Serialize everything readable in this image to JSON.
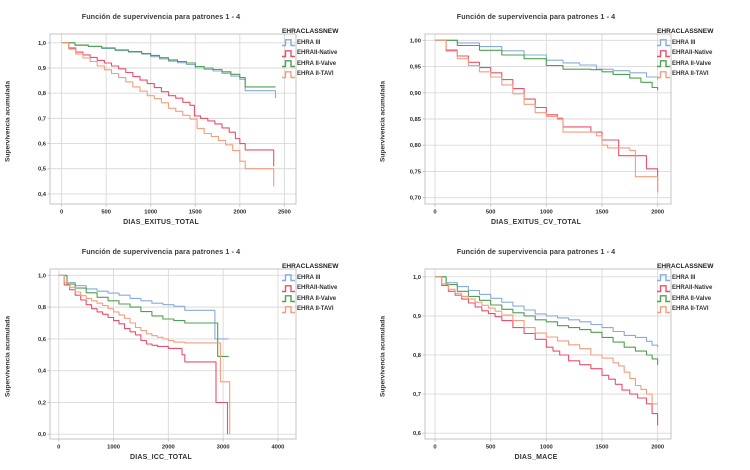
{
  "legend_title": "EHRACLASSNEW",
  "colors": {
    "grid": "#d9d9d9",
    "frame": "#c4c4c4",
    "text": "#2b2b2b",
    "title": "#3b3b3b"
  },
  "series_colors": {
    "ehra_iii": "#88acda",
    "ehraii_native": "#e9506e",
    "ehra_ii_valve": "#4fa14f",
    "ehra_ii_tavi": "#f59e7d"
  },
  "chart_data": [
    {
      "type": "line",
      "step": true,
      "title": "Función de supervivencia para patrones 1 - 4",
      "xlabel": "DIAS_EXITUS_TOTAL",
      "ylabel": "Supervivencia acumulada",
      "legend_position": "right",
      "grid": true,
      "xdomain": [
        -130,
        2630
      ],
      "ydomain": [
        0.36,
        1.035
      ],
      "xticks": {
        "values": [
          0,
          500,
          1000,
          1500,
          2000,
          2500
        ],
        "labels": [
          "0",
          "500",
          "1000",
          "1500",
          "2000",
          "2500"
        ]
      },
      "yticks": {
        "values": [
          1.0,
          0.9,
          0.8,
          0.7,
          0.6,
          0.5,
          0.4
        ],
        "labels": [
          "1,0",
          "0,9",
          "0,8",
          "0,7",
          "0,6",
          "0,5",
          "0,4"
        ]
      },
      "series": [
        {
          "name": "EHRA III",
          "color": "#88acda",
          "x": [
            0,
            150,
            300,
            450,
            600,
            750,
            900,
            1000,
            1100,
            1200,
            1300,
            1400,
            1500,
            1600,
            1700,
            1800,
            1900,
            2000,
            2060,
            2400,
            2400
          ],
          "y": [
            1.0,
            0.99,
            0.985,
            0.978,
            0.97,
            0.963,
            0.955,
            0.945,
            0.936,
            0.927,
            0.921,
            0.914,
            0.9,
            0.895,
            0.888,
            0.879,
            0.868,
            0.855,
            0.81,
            0.81,
            0.78
          ]
        },
        {
          "name": "EHRAII-Native",
          "color": "#e9506e",
          "x": [
            0,
            80,
            160,
            240,
            320,
            400,
            480,
            560,
            640,
            720,
            800,
            880,
            960,
            1040,
            1120,
            1200,
            1280,
            1360,
            1440,
            1490,
            1560,
            1640,
            1720,
            1800,
            1880,
            1950,
            2000,
            2060,
            2380,
            2380
          ],
          "y": [
            1.0,
            0.98,
            0.963,
            0.952,
            0.942,
            0.93,
            0.92,
            0.908,
            0.897,
            0.882,
            0.866,
            0.852,
            0.838,
            0.822,
            0.806,
            0.79,
            0.78,
            0.764,
            0.752,
            0.71,
            0.7,
            0.69,
            0.678,
            0.662,
            0.645,
            0.62,
            0.6,
            0.575,
            0.575,
            0.51
          ]
        },
        {
          "name": "EHRA II-Valve",
          "color": "#4fa14f",
          "x": [
            0,
            150,
            300,
            450,
            600,
            750,
            900,
            1000,
            1100,
            1200,
            1300,
            1400,
            1500,
            1600,
            1700,
            1800,
            1900,
            2000,
            2060,
            2400
          ],
          "y": [
            1.0,
            0.991,
            0.986,
            0.98,
            0.972,
            0.965,
            0.957,
            0.95,
            0.941,
            0.932,
            0.926,
            0.92,
            0.906,
            0.9,
            0.894,
            0.885,
            0.875,
            0.862,
            0.825,
            0.825
          ]
        },
        {
          "name": "EHRA II-TAVI",
          "color": "#f59e7d",
          "x": [
            0,
            80,
            160,
            240,
            320,
            400,
            480,
            560,
            640,
            720,
            800,
            880,
            960,
            1040,
            1120,
            1200,
            1280,
            1360,
            1440,
            1520,
            1600,
            1680,
            1760,
            1840,
            1920,
            2000,
            2060,
            2350,
            2380
          ],
          "y": [
            1.0,
            0.975,
            0.955,
            0.94,
            0.926,
            0.908,
            0.893,
            0.878,
            0.862,
            0.845,
            0.825,
            0.808,
            0.79,
            0.778,
            0.762,
            0.74,
            0.728,
            0.712,
            0.697,
            0.66,
            0.64,
            0.628,
            0.612,
            0.595,
            0.572,
            0.53,
            0.5,
            0.5,
            0.43
          ]
        }
      ]
    },
    {
      "type": "line",
      "step": true,
      "title": "Función de supervivencia para patrones 1 - 4",
      "xlabel": "DIAS_EXITUS_CV_TOTAL",
      "ylabel": "Supervivencia acumulada",
      "legend_position": "right",
      "grid": true,
      "xdomain": [
        -90,
        2120
      ],
      "ydomain": [
        0.688,
        1.012
      ],
      "xticks": {
        "values": [
          0,
          500,
          1000,
          1500,
          2000
        ],
        "labels": [
          "0",
          "500",
          "1000",
          "1500",
          "2000"
        ]
      },
      "yticks": {
        "values": [
          1.0,
          0.95,
          0.9,
          0.85,
          0.8,
          0.75,
          0.7
        ],
        "labels": [
          "1,00",
          "0,95",
          "0,90",
          "0,85",
          "0,80",
          "0,75",
          "0,70"
        ]
      },
      "series": [
        {
          "name": "EHRA III",
          "color": "#88acda",
          "x": [
            0,
            200,
            400,
            600,
            800,
            1000,
            1150,
            1300,
            1450,
            1600,
            1750,
            1900,
            2000
          ],
          "y": [
            1.0,
            0.995,
            0.988,
            0.98,
            0.972,
            0.962,
            0.957,
            0.953,
            0.945,
            0.942,
            0.938,
            0.93,
            0.925
          ]
        },
        {
          "name": "EHRAII-Native",
          "color": "#e9506e",
          "x": [
            0,
            100,
            200,
            300,
            400,
            500,
            600,
            700,
            800,
            900,
            1000,
            1100,
            1150,
            1400,
            1500,
            1650,
            1850,
            1900,
            1990,
            2000
          ],
          "y": [
            1.0,
            0.98,
            0.97,
            0.958,
            0.948,
            0.938,
            0.925,
            0.908,
            0.888,
            0.872,
            0.858,
            0.85,
            0.835,
            0.825,
            0.81,
            0.78,
            0.78,
            0.755,
            0.755,
            0.71
          ]
        },
        {
          "name": "EHRA II-Valve",
          "color": "#4fa14f",
          "x": [
            0,
            200,
            400,
            600,
            800,
            1000,
            1150,
            1400,
            1500,
            1600,
            1750,
            1850,
            1950,
            2000
          ],
          "y": [
            1.0,
            0.99,
            0.981,
            0.972,
            0.965,
            0.952,
            0.945,
            0.944,
            0.94,
            0.935,
            0.928,
            0.92,
            0.91,
            0.905
          ]
        },
        {
          "name": "EHRA II-TAVI",
          "color": "#f59e7d",
          "x": [
            0,
            100,
            200,
            300,
            400,
            500,
            600,
            700,
            800,
            900,
            1000,
            1100,
            1150,
            1450,
            1500,
            1550,
            1750,
            1800,
            1950,
            2000
          ],
          "y": [
            1.0,
            0.982,
            0.965,
            0.952,
            0.94,
            0.93,
            0.915,
            0.898,
            0.878,
            0.862,
            0.855,
            0.852,
            0.825,
            0.818,
            0.8,
            0.795,
            0.79,
            0.74,
            0.74,
            0.71
          ]
        }
      ]
    },
    {
      "type": "line",
      "step": true,
      "title": "Función de supervivencia para patrones 1 - 4",
      "xlabel": "DIAS_ICC_TOTAL",
      "ylabel": "Supervivencia acumulada",
      "legend_position": "right",
      "grid": true,
      "xdomain": [
        -160,
        4330
      ],
      "ydomain": [
        -0.03,
        1.04
      ],
      "xticks": {
        "values": [
          0,
          1000,
          2000,
          3000,
          4000
        ],
        "labels": [
          "0",
          "1000",
          "2000",
          "3000",
          "4000"
        ]
      },
      "yticks": {
        "values": [
          1.0,
          0.8,
          0.6,
          0.4,
          0.2,
          0.0
        ],
        "labels": [
          "1,0",
          "0,8",
          "0,6",
          "0,4",
          "0,2",
          "0,0"
        ]
      },
      "series": [
        {
          "name": "EHRA III",
          "color": "#88acda",
          "x": [
            0,
            150,
            300,
            500,
            700,
            900,
            1100,
            1300,
            1500,
            1700,
            1900,
            2100,
            2300,
            2850,
            2850,
            3100
          ],
          "y": [
            1.0,
            0.955,
            0.935,
            0.915,
            0.9,
            0.888,
            0.875,
            0.855,
            0.84,
            0.825,
            0.815,
            0.805,
            0.78,
            0.78,
            0.6,
            0.6
          ]
        },
        {
          "name": "EHRAII-Native",
          "color": "#e9506e",
          "x": [
            0,
            100,
            200,
            300,
            400,
            500,
            600,
            700,
            800,
            900,
            1000,
            1100,
            1200,
            1300,
            1400,
            1500,
            1600,
            1700,
            1800,
            2000,
            2250,
            2300,
            2870,
            2870,
            3080,
            3080
          ],
          "y": [
            1.0,
            0.94,
            0.91,
            0.875,
            0.845,
            0.815,
            0.79,
            0.77,
            0.755,
            0.735,
            0.715,
            0.695,
            0.665,
            0.645,
            0.625,
            0.59,
            0.568,
            0.56,
            0.553,
            0.54,
            0.5,
            0.455,
            0.455,
            0.2,
            0.2,
            0.0
          ]
        },
        {
          "name": "EHRA II-Valve",
          "color": "#4fa14f",
          "x": [
            0,
            150,
            300,
            500,
            700,
            900,
            1100,
            1300,
            1500,
            1700,
            1900,
            2100,
            2300,
            2900,
            2900,
            3100
          ],
          "y": [
            1.0,
            0.945,
            0.92,
            0.89,
            0.862,
            0.84,
            0.82,
            0.8,
            0.772,
            0.745,
            0.725,
            0.715,
            0.7,
            0.7,
            0.49,
            0.49
          ]
        },
        {
          "name": "EHRA II-TAVI",
          "color": "#f59e7d",
          "x": [
            0,
            100,
            200,
            300,
            400,
            500,
            600,
            700,
            800,
            900,
            1000,
            1100,
            1200,
            1300,
            1400,
            1500,
            1600,
            1700,
            1800,
            1900,
            2000,
            2100,
            2300,
            2950,
            2950,
            3120,
            3120
          ],
          "y": [
            1.0,
            0.955,
            0.925,
            0.895,
            0.872,
            0.855,
            0.84,
            0.825,
            0.81,
            0.79,
            0.77,
            0.75,
            0.73,
            0.7,
            0.672,
            0.652,
            0.632,
            0.62,
            0.61,
            0.6,
            0.59,
            0.58,
            0.575,
            0.575,
            0.33,
            0.33,
            0.0
          ]
        }
      ]
    },
    {
      "type": "line",
      "step": true,
      "title": "Función de supervivencia para patrones 1 - 4",
      "xlabel": "DIAS_MACE",
      "ylabel": "Supervivencia acumulada",
      "legend_position": "right",
      "grid": true,
      "xdomain": [
        -90,
        2120
      ],
      "ydomain": [
        0.585,
        1.02
      ],
      "xticks": {
        "values": [
          0,
          500,
          1000,
          1500,
          2000
        ],
        "labels": [
          "0",
          "500",
          "1000",
          "1500",
          "2000"
        ]
      },
      "yticks": {
        "values": [
          1.0,
          0.9,
          0.8,
          0.7,
          0.6
        ],
        "labels": [
          "1,0",
          "0,9",
          "0,8",
          "0,7",
          "0,6"
        ]
      },
      "series": [
        {
          "name": "EHRA III",
          "color": "#88acda",
          "x": [
            0,
            100,
            200,
            300,
            400,
            500,
            600,
            700,
            800,
            900,
            1000,
            1100,
            1200,
            1300,
            1400,
            1500,
            1600,
            1700,
            1800,
            1900,
            1950,
            2000
          ],
          "y": [
            1.0,
            0.985,
            0.975,
            0.965,
            0.955,
            0.945,
            0.935,
            0.925,
            0.915,
            0.905,
            0.9,
            0.895,
            0.89,
            0.885,
            0.878,
            0.87,
            0.86,
            0.85,
            0.845,
            0.835,
            0.825,
            0.82
          ]
        },
        {
          "name": "EHRAII-Native",
          "color": "#e9506e",
          "x": [
            0,
            60,
            120,
            180,
            240,
            300,
            360,
            420,
            480,
            540,
            600,
            700,
            800,
            900,
            1000,
            1060,
            1120,
            1200,
            1300,
            1400,
            1500,
            1560,
            1620,
            1680,
            1750,
            1820,
            1900,
            1950,
            2000
          ],
          "y": [
            1.0,
            0.978,
            0.963,
            0.953,
            0.943,
            0.933,
            0.923,
            0.913,
            0.906,
            0.898,
            0.888,
            0.87,
            0.855,
            0.84,
            0.82,
            0.81,
            0.8,
            0.785,
            0.775,
            0.765,
            0.748,
            0.738,
            0.725,
            0.71,
            0.7,
            0.69,
            0.675,
            0.65,
            0.62
          ]
        },
        {
          "name": "EHRA II-Valve",
          "color": "#4fa14f",
          "x": [
            0,
            100,
            200,
            300,
            400,
            500,
            600,
            700,
            800,
            900,
            1000,
            1100,
            1200,
            1300,
            1400,
            1500,
            1600,
            1700,
            1800,
            1900,
            1950,
            2000
          ],
          "y": [
            1.0,
            0.98,
            0.963,
            0.95,
            0.94,
            0.928,
            0.917,
            0.908,
            0.9,
            0.89,
            0.885,
            0.875,
            0.87,
            0.865,
            0.858,
            0.845,
            0.833,
            0.82,
            0.81,
            0.8,
            0.79,
            0.775
          ]
        },
        {
          "name": "EHRA II-TAVI",
          "color": "#f59e7d",
          "x": [
            0,
            60,
            120,
            180,
            240,
            300,
            360,
            420,
            480,
            540,
            600,
            700,
            800,
            900,
            1000,
            1100,
            1200,
            1300,
            1400,
            1500,
            1600,
            1650,
            1700,
            1750,
            1800,
            1850,
            1900,
            1950,
            2000
          ],
          "y": [
            1.0,
            0.982,
            0.968,
            0.958,
            0.95,
            0.943,
            0.935,
            0.927,
            0.92,
            0.912,
            0.902,
            0.888,
            0.87,
            0.856,
            0.846,
            0.836,
            0.826,
            0.816,
            0.8,
            0.792,
            0.78,
            0.772,
            0.756,
            0.74,
            0.722,
            0.712,
            0.7,
            0.675,
            0.675
          ]
        }
      ]
    }
  ]
}
